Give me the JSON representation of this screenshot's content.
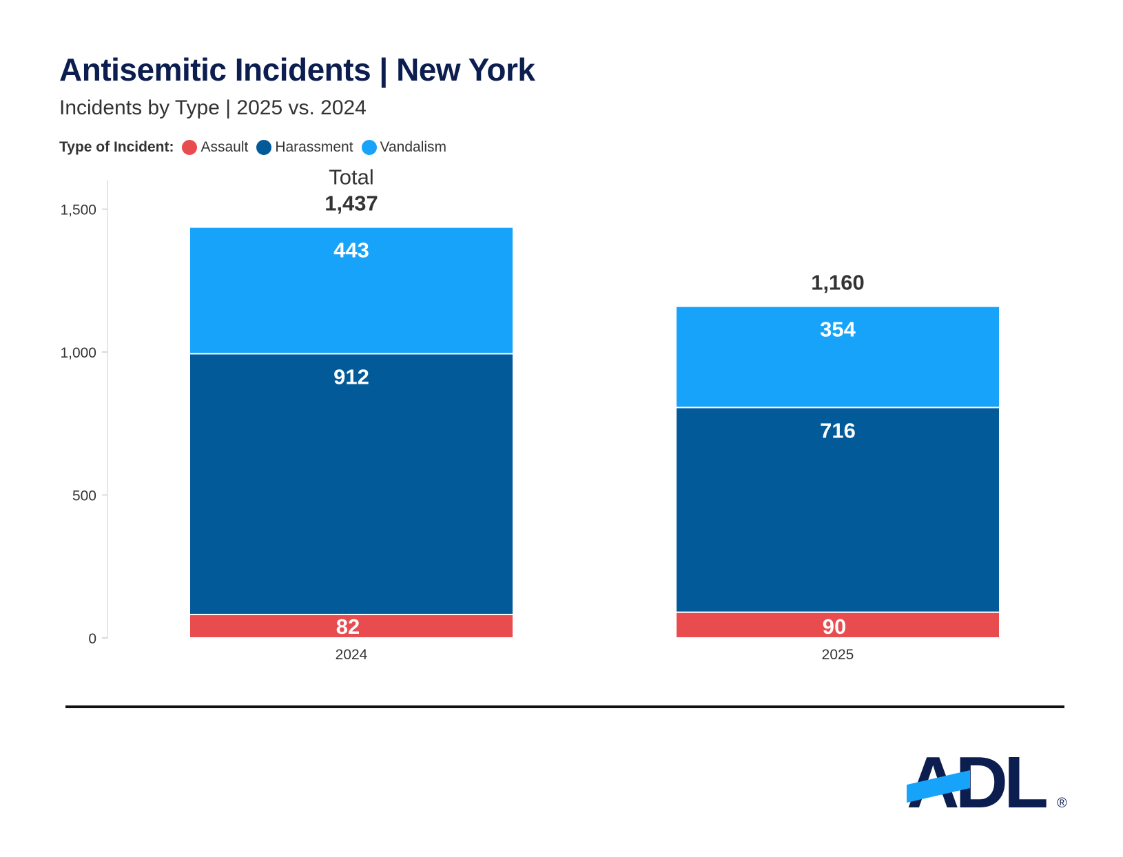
{
  "header": {
    "title": "Antisemitic Incidents | New York",
    "subtitle": "Incidents by Type | 2025 vs. 2024"
  },
  "legend": {
    "title": "Type of Incident:",
    "items": [
      {
        "label": "Assault",
        "color": "#e84c4e"
      },
      {
        "label": "Harassment",
        "color": "#025a99"
      },
      {
        "label": "Vandalism",
        "color": "#16a3f9"
      }
    ]
  },
  "chart_data": {
    "type": "bar",
    "stacked": true,
    "categories": [
      "2024",
      "2025"
    ],
    "series": [
      {
        "name": "Assault",
        "values": [
          82,
          90
        ],
        "color": "#e84c4e"
      },
      {
        "name": "Harassment",
        "values": [
          912,
          716
        ],
        "color": "#025a99"
      },
      {
        "name": "Vandalism",
        "values": [
          443,
          354
        ],
        "color": "#16a3f9"
      }
    ],
    "totals": [
      1437,
      1160
    ],
    "total_labels": [
      "1,437",
      "1,160"
    ],
    "total_caption": "Total",
    "ylim": [
      0,
      1600
    ],
    "yticks": [
      0,
      500,
      1000,
      1500
    ],
    "ytick_labels": [
      "0",
      "500",
      "1,000",
      "1,500"
    ],
    "grid": false
  },
  "logo": {
    "text": "ADL",
    "registered_mark": "®",
    "color": "#0b1e4f",
    "accent_color": "#16a3f9"
  }
}
